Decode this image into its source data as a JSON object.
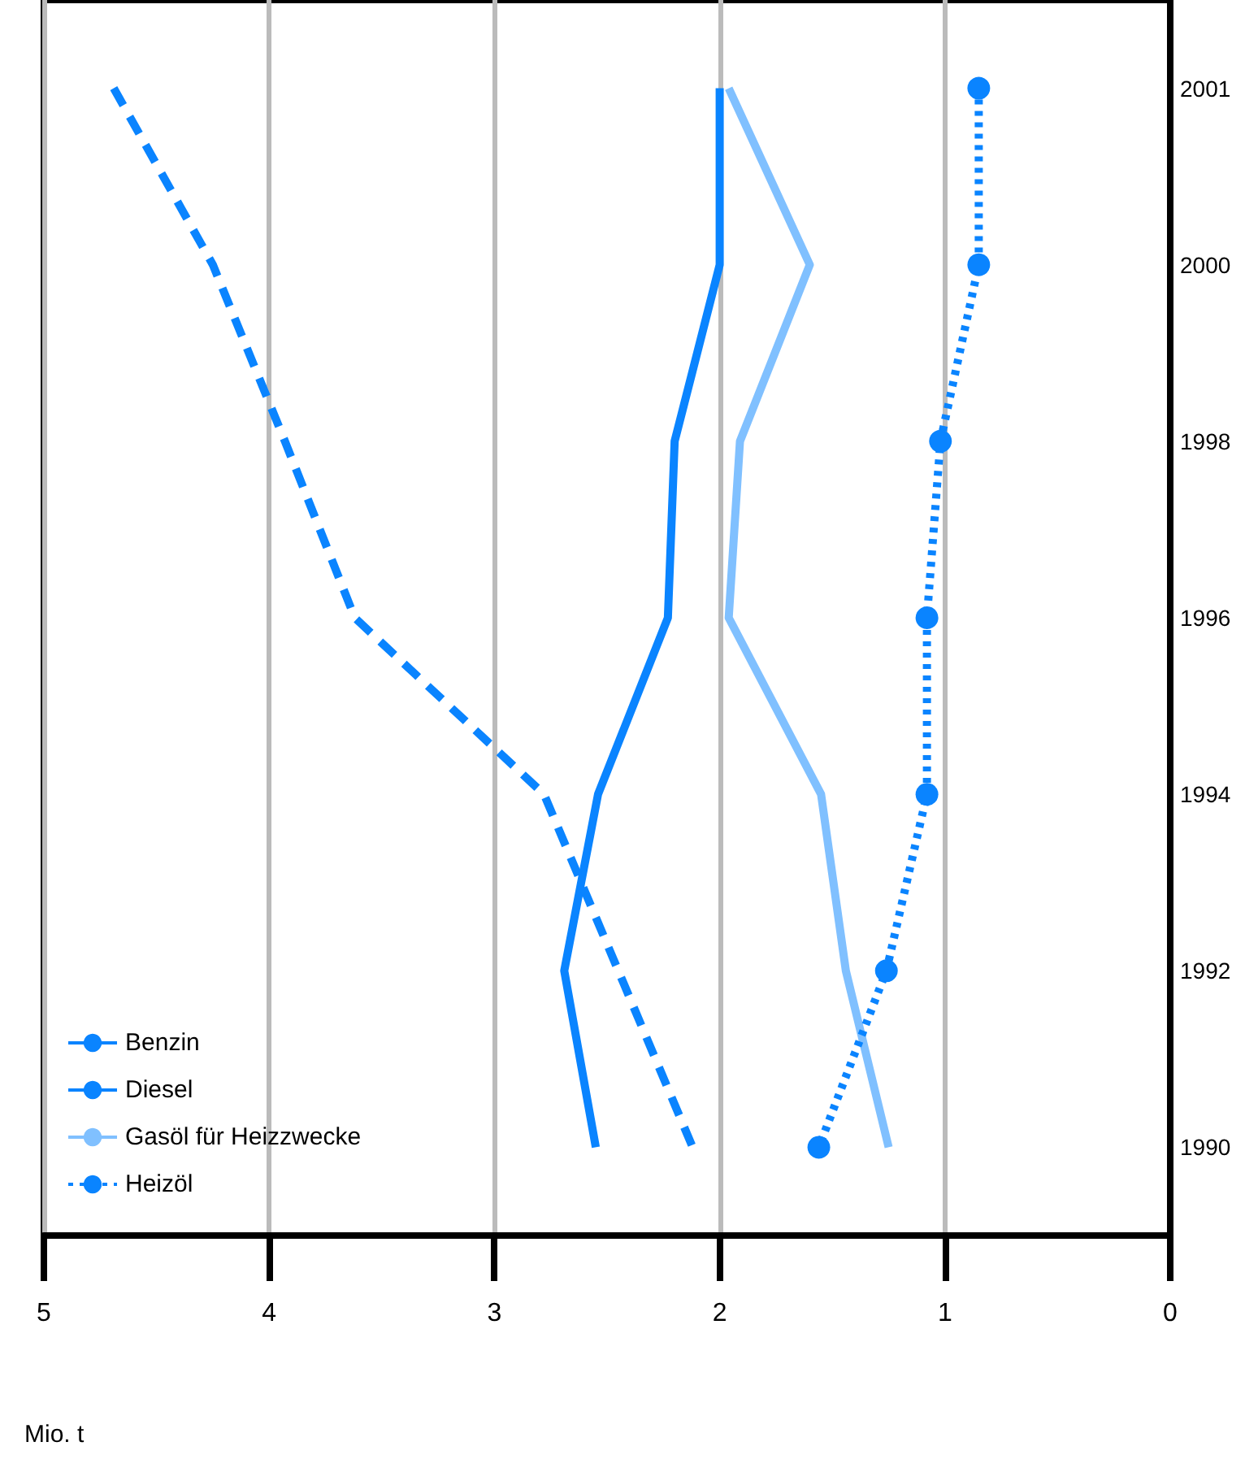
{
  "chart_data": {
    "type": "line",
    "orientation": "horizontal",
    "xlabel": "Mio. t",
    "categories": [
      "2001",
      "2000",
      "1998",
      "1996",
      "1994",
      "1992",
      "1990"
    ],
    "series": [
      {
        "name": "Benzin",
        "color": "#0a84ff",
        "line_style": "solid",
        "marker": "none",
        "values": [
          2.0,
          2.0,
          2.2,
          2.23,
          2.54,
          2.69,
          2.55
        ]
      },
      {
        "name": "Diesel",
        "color": "#0a84ff",
        "line_style": "dashed",
        "marker": "none",
        "values": [
          4.69,
          4.25,
          3.93,
          3.62,
          2.78,
          2.45,
          2.12
        ]
      },
      {
        "name": "Gasöl für Heizzwecke",
        "color": "#80c0ff",
        "line_style": "solid",
        "marker": "none",
        "values": [
          1.96,
          1.6,
          1.91,
          1.96,
          1.55,
          1.44,
          1.25
        ]
      },
      {
        "name": "Heizöl",
        "color": "#0a84ff",
        "line_style": "dotted",
        "marker": "circle",
        "values": [
          0.85,
          0.85,
          1.02,
          1.08,
          1.08,
          1.26,
          1.56
        ]
      }
    ],
    "xlim": [
      5,
      0
    ],
    "xticks": [
      0,
      1,
      2,
      3,
      4,
      5
    ],
    "grid": "x",
    "legend": "bottom left"
  }
}
